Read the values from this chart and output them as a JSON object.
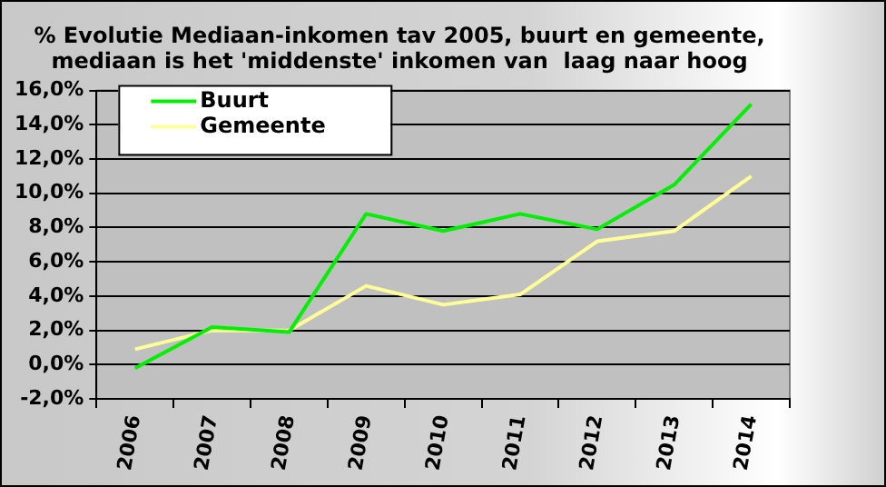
{
  "chart_data": {
    "type": "line",
    "title": [
      "% Evolutie Mediaan-inkomen tav 2005, buurt en gemeente,",
      "mediaan is het 'middenste' inkomen van  laag naar hoog"
    ],
    "categories": [
      "2006",
      "2007",
      "2008",
      "2009",
      "2010",
      "2011",
      "2012",
      "2013",
      "2014"
    ],
    "series": [
      {
        "name": "Buurt",
        "color": "#00ee00",
        "values": [
          -0.2,
          2.2,
          1.9,
          8.8,
          7.8,
          8.8,
          7.9,
          10.5,
          15.2
        ]
      },
      {
        "name": "Gemeente",
        "color": "#ffff99",
        "values": [
          0.9,
          2.0,
          2.0,
          4.6,
          3.5,
          4.1,
          7.2,
          7.8,
          11.0
        ]
      }
    ],
    "ylim": [
      -2,
      16
    ],
    "yticks": [
      {
        "value": -2,
        "label": "-2,0%"
      },
      {
        "value": 0,
        "label": "0,0%"
      },
      {
        "value": 2,
        "label": "2,0%"
      },
      {
        "value": 4,
        "label": "4,0%"
      },
      {
        "value": 6,
        "label": "6,0%"
      },
      {
        "value": 8,
        "label": "8,0%"
      },
      {
        "value": 10,
        "label": "10,0%"
      },
      {
        "value": 12,
        "label": "12,0%"
      },
      {
        "value": 14,
        "label": "14,0%"
      },
      {
        "value": 16,
        "label": "16,0%"
      }
    ],
    "grid": "y",
    "legend": "top left",
    "marker": "none",
    "line_style": "solid"
  }
}
